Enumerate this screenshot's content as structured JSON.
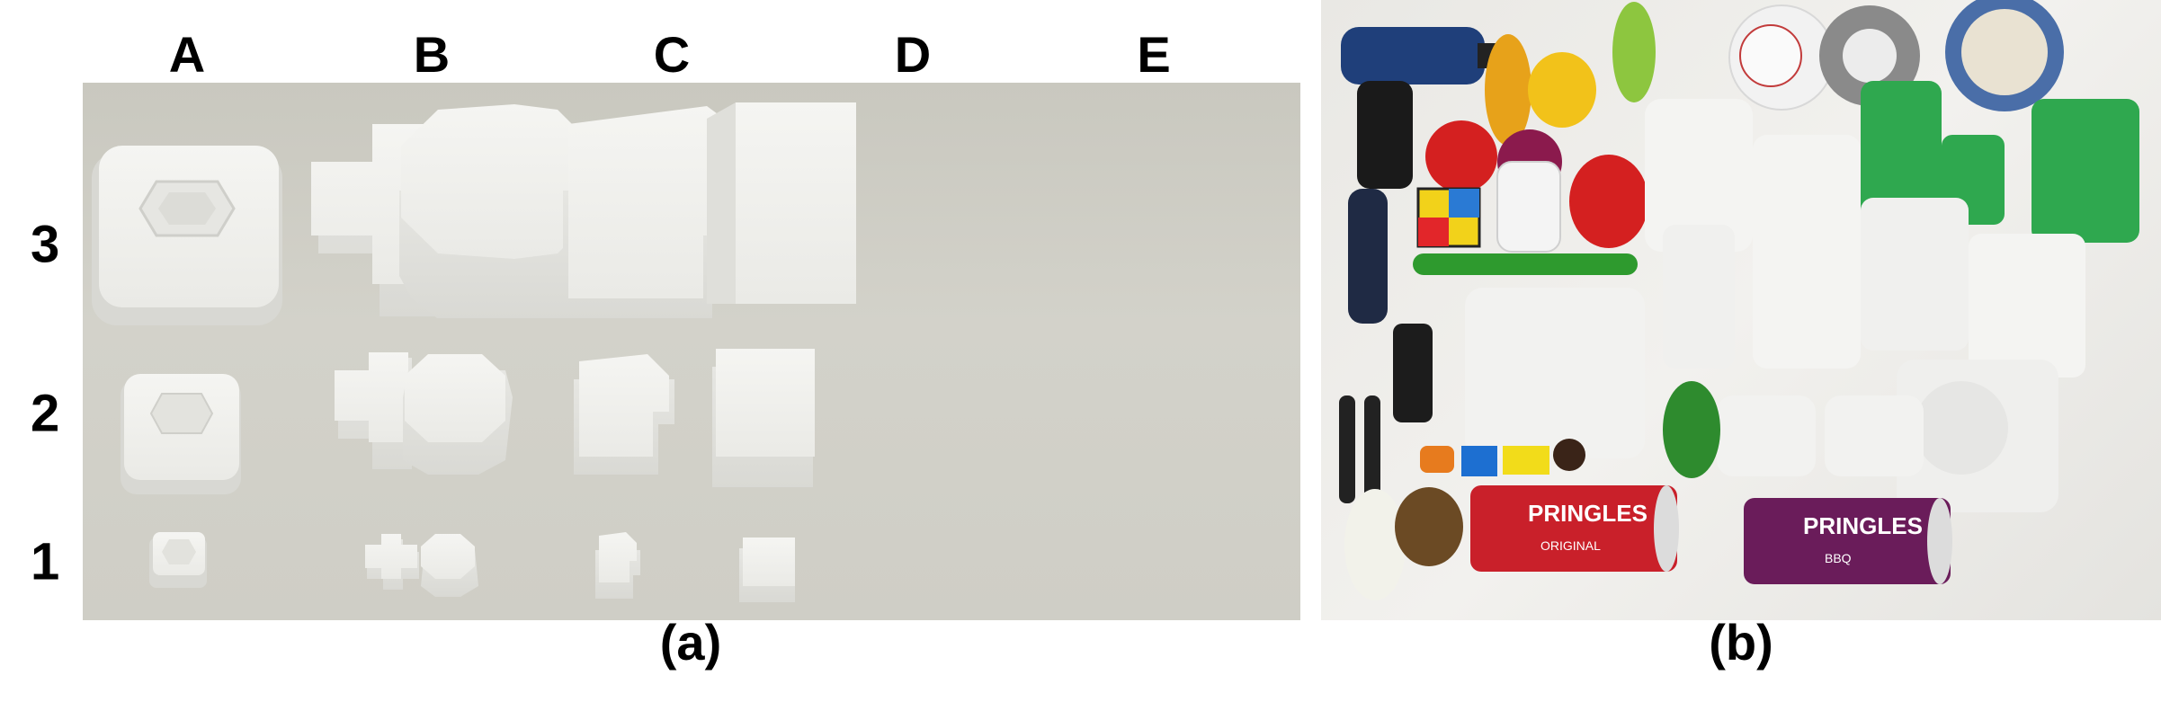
{
  "panel_a": {
    "columns": [
      "A",
      "B",
      "C",
      "D",
      "E"
    ],
    "rows": [
      "3",
      "2",
      "1"
    ],
    "caption": "(a)"
  },
  "panel_b": {
    "caption": "(b)",
    "can_texts": {
      "can1_brand": "PRINGLES",
      "can1_flavor": "ORIGINAL",
      "can2_brand": "PRINGLES",
      "can2_flavor": "BBQ"
    }
  }
}
